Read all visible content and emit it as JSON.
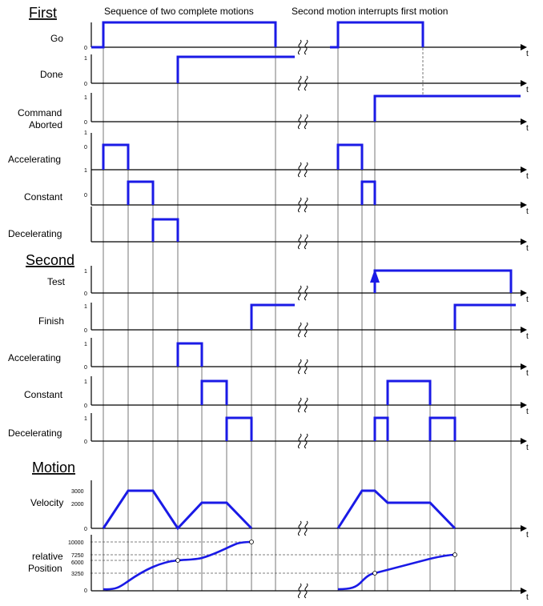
{
  "captions": {
    "left": "Sequence of two complete motions",
    "right": "Second motion interrupts first motion"
  },
  "sections": {
    "first": "First",
    "second": "Second",
    "motion": "Motion"
  },
  "axis_symbol": "t",
  "signals": {
    "go": "Go",
    "done": "Done",
    "command_aborted_1": "Command",
    "command_aborted_2": "Aborted",
    "first_accelerating": "Accelerating",
    "first_constant": "Constant",
    "first_decelerating": "Decelerating",
    "test": "Test",
    "finish": "Finish",
    "second_accelerating": "Accelerating",
    "second_constant": "Constant",
    "second_decelerating": "Decelerating",
    "velocity": "Velocity",
    "position_1": "relative",
    "position_2": "Position"
  },
  "ticks": {
    "zero": "0",
    "one": "1",
    "v3000": "3000",
    "v2000": "2000",
    "p10000": "10000",
    "p7250": "7250",
    "p6000": "6000",
    "p3250": "3250"
  },
  "colors": {
    "signal": "#1a1ae6",
    "axis": "#000000"
  }
}
